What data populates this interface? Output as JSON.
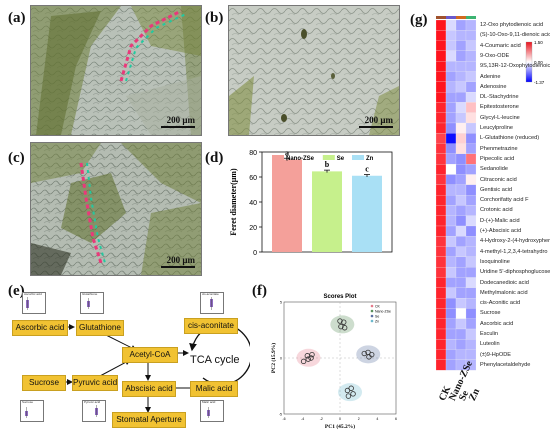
{
  "panels": {
    "a": "(a)",
    "b": "(b)",
    "c": "(c)",
    "d": "(d)",
    "e": "(e)",
    "f": "(f)",
    "g": "(g)"
  },
  "scale_bar_label": "200 μm",
  "bar_chart": {
    "chart_data": {
      "type": "bar",
      "categories": [
        "Nano-ZSe",
        "Se",
        "Zn"
      ],
      "values": [
        74,
        64.5,
        61
      ],
      "errors": [
        1.0,
        1.0,
        1.0
      ],
      "significance": [
        "a",
        "b",
        "c"
      ],
      "ylabel": "Feret diameter(μm)",
      "ylim": [
        0,
        80
      ],
      "yticks": [
        0,
        20,
        40,
        60,
        80
      ],
      "legend": [
        "Nano-ZSe",
        "Se",
        "Zn"
      ],
      "legend_position": "top",
      "colors": [
        "#f4a09a",
        "#c6f08c",
        "#a9e0f5"
      ]
    }
  },
  "pathway": {
    "ascorbic": "Ascorbic acid",
    "glutathione": "Glutathione",
    "cis_aconitate": "cis-aconitate",
    "acetyl_coa": "Acetyl-CoA",
    "tca": "TCA cycle",
    "sucrose": "Sucrose",
    "pyruvic": "Pyruvic acid",
    "abscisic": "Abscisic acid",
    "malic": "Malic acid",
    "stomatal": "Stomatal Aperture",
    "mini_titles": [
      "Ascorbic acid",
      "Glutathione",
      "cis-aconitate",
      "Sucrose",
      "Pyruvic acid",
      "Malic acid"
    ]
  },
  "scores_plot": {
    "title": "Scores Plot",
    "xlabel": "PC1 (45.2%)",
    "ylabel": "PC2 (15.9%)",
    "legend": [
      "CK",
      "Nano-ZSe",
      "Se",
      "Zn"
    ],
    "chart_data": {
      "type": "scatter",
      "series": [
        {
          "name": "CK",
          "color": "#e57a8a",
          "points": [
            [
              -3.9,
              -0.3
            ],
            [
              -3.5,
              0.2
            ],
            [
              -3.0,
              0.3
            ],
            [
              -3.4,
              -0.1
            ],
            [
              -3.1,
              0.0
            ]
          ]
        },
        {
          "name": "Nano-ZSe",
          "color": "#5b8f5b",
          "points": [
            [
              0.0,
              3.3
            ],
            [
              0.4,
              3.2
            ],
            [
              0.1,
              2.8
            ],
            [
              0.5,
              2.7
            ]
          ]
        },
        {
          "name": "Se",
          "color": "#5b6fa0",
          "points": [
            [
              2.6,
              0.4
            ],
            [
              3.0,
              0.5
            ],
            [
              3.4,
              0.3
            ],
            [
              3.1,
              0.1
            ]
          ]
        },
        {
          "name": "Zn",
          "color": "#6cb8cc",
          "points": [
            [
              0.8,
              -2.9
            ],
            [
              1.2,
              -2.7
            ],
            [
              0.9,
              -3.4
            ],
            [
              1.4,
              -3.2
            ]
          ]
        }
      ],
      "xlim": [
        -6,
        6
      ],
      "ylim": [
        -5,
        5
      ],
      "xticks": [
        -6,
        -4,
        -2,
        0,
        2,
        4,
        6
      ],
      "yticks": [
        -5,
        0,
        5
      ]
    }
  },
  "heatmap": {
    "rows": [
      "12-Oxo phytodienoic acid",
      "(S)-10-Oxo-9,11-dienoic acid",
      "4-Coumaric acid",
      "9-Oxo-ODE",
      "9S,13R-12-Oxophytodienoic",
      "Adenine",
      "Adenosine",
      "DL-Stachydrine",
      "Epitestosterone",
      "Glycyl-L-leucine",
      "Leucylproline",
      "L-Glutathione (reduced)",
      "Phenmetrazine",
      "Pipecolic acid",
      "Sedanolide",
      "Citraconic acid",
      "Gentisic acid",
      "Corchorifatty acid F",
      "Crotonic acid",
      "D-(+)-Malic acid",
      "(+)-Abscisic acid",
      "4-Hydroxy-2-(4-hydroxyphenyl)",
      "4-methyl-1,2,3,4-tetrahydro",
      "Isoquinoline",
      "Uridine 5'-diphosphoglucose",
      "Dodecanedioic acid",
      "Methylmalonic acid",
      "cis-Aconitic acid",
      "Sucrose",
      "Ascorbic acid",
      "Esculin",
      "Luteolin",
      "(±)9-HpODE",
      "Phenylacetaldehyde"
    ],
    "columns": [
      "CK",
      "Nano-ZSe",
      "Se",
      "Zn"
    ],
    "colorbar_ticks": [
      "1.50",
      "0.00",
      "-1.37"
    ],
    "values": [
      [
        1.5,
        -0.2,
        -0.5,
        -0.4
      ],
      [
        1.5,
        -0.3,
        -0.4,
        -0.4
      ],
      [
        1.5,
        -0.3,
        -0.5,
        -0.3
      ],
      [
        1.5,
        -0.2,
        -0.5,
        -0.4
      ],
      [
        1.5,
        -0.4,
        -0.4,
        -0.4
      ],
      [
        1.5,
        -0.5,
        -0.4,
        -0.3
      ],
      [
        1.5,
        -0.4,
        -0.3,
        -0.5
      ],
      [
        1.5,
        -0.5,
        -0.5,
        -0.2
      ],
      [
        1.4,
        -0.5,
        -0.2,
        0.4
      ],
      [
        1.4,
        -0.5,
        -0.3,
        0.2
      ],
      [
        1.4,
        -0.6,
        0.1,
        -0.3
      ],
      [
        1.2,
        -1.3,
        0.3,
        -0.6
      ],
      [
        1.3,
        -0.6,
        0.2,
        -0.5
      ],
      [
        1.3,
        -0.5,
        -0.6,
        0.9
      ],
      [
        1.4,
        0.0,
        -0.6,
        -0.5
      ],
      [
        1.3,
        -0.6,
        -0.5,
        0.1
      ],
      [
        1.4,
        -0.4,
        -0.4,
        -0.6
      ],
      [
        1.4,
        -0.5,
        -0.3,
        -0.5
      ],
      [
        1.4,
        -0.4,
        -0.5,
        -0.4
      ],
      [
        1.4,
        -0.4,
        -0.6,
        -0.2
      ],
      [
        1.4,
        -0.5,
        -0.2,
        -0.6
      ],
      [
        1.3,
        -0.3,
        -0.5,
        -0.4
      ],
      [
        1.3,
        -0.5,
        -0.3,
        -0.4
      ],
      [
        1.3,
        -0.4,
        -0.5,
        -0.3
      ],
      [
        1.3,
        -0.3,
        -0.5,
        -0.5
      ],
      [
        1.4,
        -0.5,
        -0.5,
        -0.2
      ],
      [
        1.4,
        -0.3,
        -0.5,
        -0.5
      ],
      [
        1.4,
        -0.6,
        -0.3,
        -0.4
      ],
      [
        1.4,
        -0.6,
        0.0,
        -0.6
      ],
      [
        1.4,
        -0.5,
        -0.3,
        -0.5
      ],
      [
        1.4,
        -0.5,
        -0.5,
        -0.3
      ],
      [
        1.4,
        -0.4,
        -0.5,
        -0.4
      ],
      [
        1.4,
        -0.5,
        -0.4,
        -0.4
      ],
      [
        1.4,
        -0.5,
        -0.4,
        -0.4
      ]
    ]
  }
}
